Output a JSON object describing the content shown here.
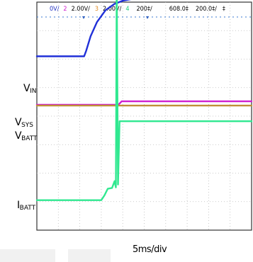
{
  "scope_header": {
    "items": [
      {
        "text": "0V/",
        "color": "#2030c0"
      },
      {
        "text": "2",
        "color": "#d020d0"
      },
      {
        "text": "2.00V/",
        "color": "#000000"
      },
      {
        "text": "3",
        "color": "#e08a20"
      },
      {
        "text": "2.00V/",
        "color": "#000000"
      },
      {
        "text": "4",
        "color": "#20d080"
      },
      {
        "text": "200‡/",
        "color": "#000000"
      },
      {
        "text": "608.0‡",
        "color": "#000000"
      },
      {
        "text": "200.0‡/",
        "color": "#000000"
      },
      {
        "text": "‡",
        "color": "#000000"
      }
    ]
  },
  "labels": {
    "vin": {
      "main": "V",
      "sub": "IN"
    },
    "vsys": {
      "main": "V",
      "sub": "SYS"
    },
    "vbatt": {
      "main": "V",
      "sub": "BATT"
    },
    "ibatt": {
      "main": "I",
      "sub": "BATT"
    }
  },
  "timebase": "5ms/div",
  "chart_data": {
    "type": "line",
    "title": "",
    "xlabel": "5ms/div",
    "ylabel": "",
    "grid": true,
    "divisions": {
      "x": 10,
      "y": 8
    },
    "x_range_div": [
      0,
      10
    ],
    "y_range_div": [
      0,
      8
    ],
    "series": [
      {
        "name": "VIN",
        "color": "#2030d8",
        "points": [
          [
            0,
            6.1
          ],
          [
            2.2,
            6.1
          ],
          [
            2.3,
            6.3
          ],
          [
            2.5,
            6.8
          ],
          [
            2.8,
            7.3
          ],
          [
            3.2,
            7.72
          ],
          [
            3.6,
            7.93
          ],
          [
            4.0,
            8.05
          ],
          [
            4.5,
            8.12
          ],
          [
            5.2,
            8.16
          ],
          [
            6.5,
            8.18
          ],
          [
            10,
            8.18
          ]
        ]
      },
      {
        "name": "VSYS",
        "color": "#d020d0",
        "points": [
          [
            0,
            4.4
          ],
          [
            3.8,
            4.4
          ],
          [
            3.95,
            4.52
          ],
          [
            10,
            4.52
          ]
        ]
      },
      {
        "name": "VBATT",
        "color": "#c09038",
        "points": [
          [
            0,
            4.37
          ],
          [
            10,
            4.37
          ]
        ]
      },
      {
        "name": "IBATT",
        "color": "#30e890",
        "points": [
          [
            0,
            1.05
          ],
          [
            3.0,
            1.05
          ],
          [
            3.15,
            1.22
          ],
          [
            3.3,
            1.45
          ],
          [
            3.5,
            1.48
          ],
          [
            3.62,
            1.72
          ],
          [
            3.68,
            1.5
          ],
          [
            3.72,
            8.7
          ],
          [
            3.78,
            1.6
          ],
          [
            3.85,
            3.82
          ],
          [
            10,
            3.82
          ]
        ]
      }
    ]
  }
}
